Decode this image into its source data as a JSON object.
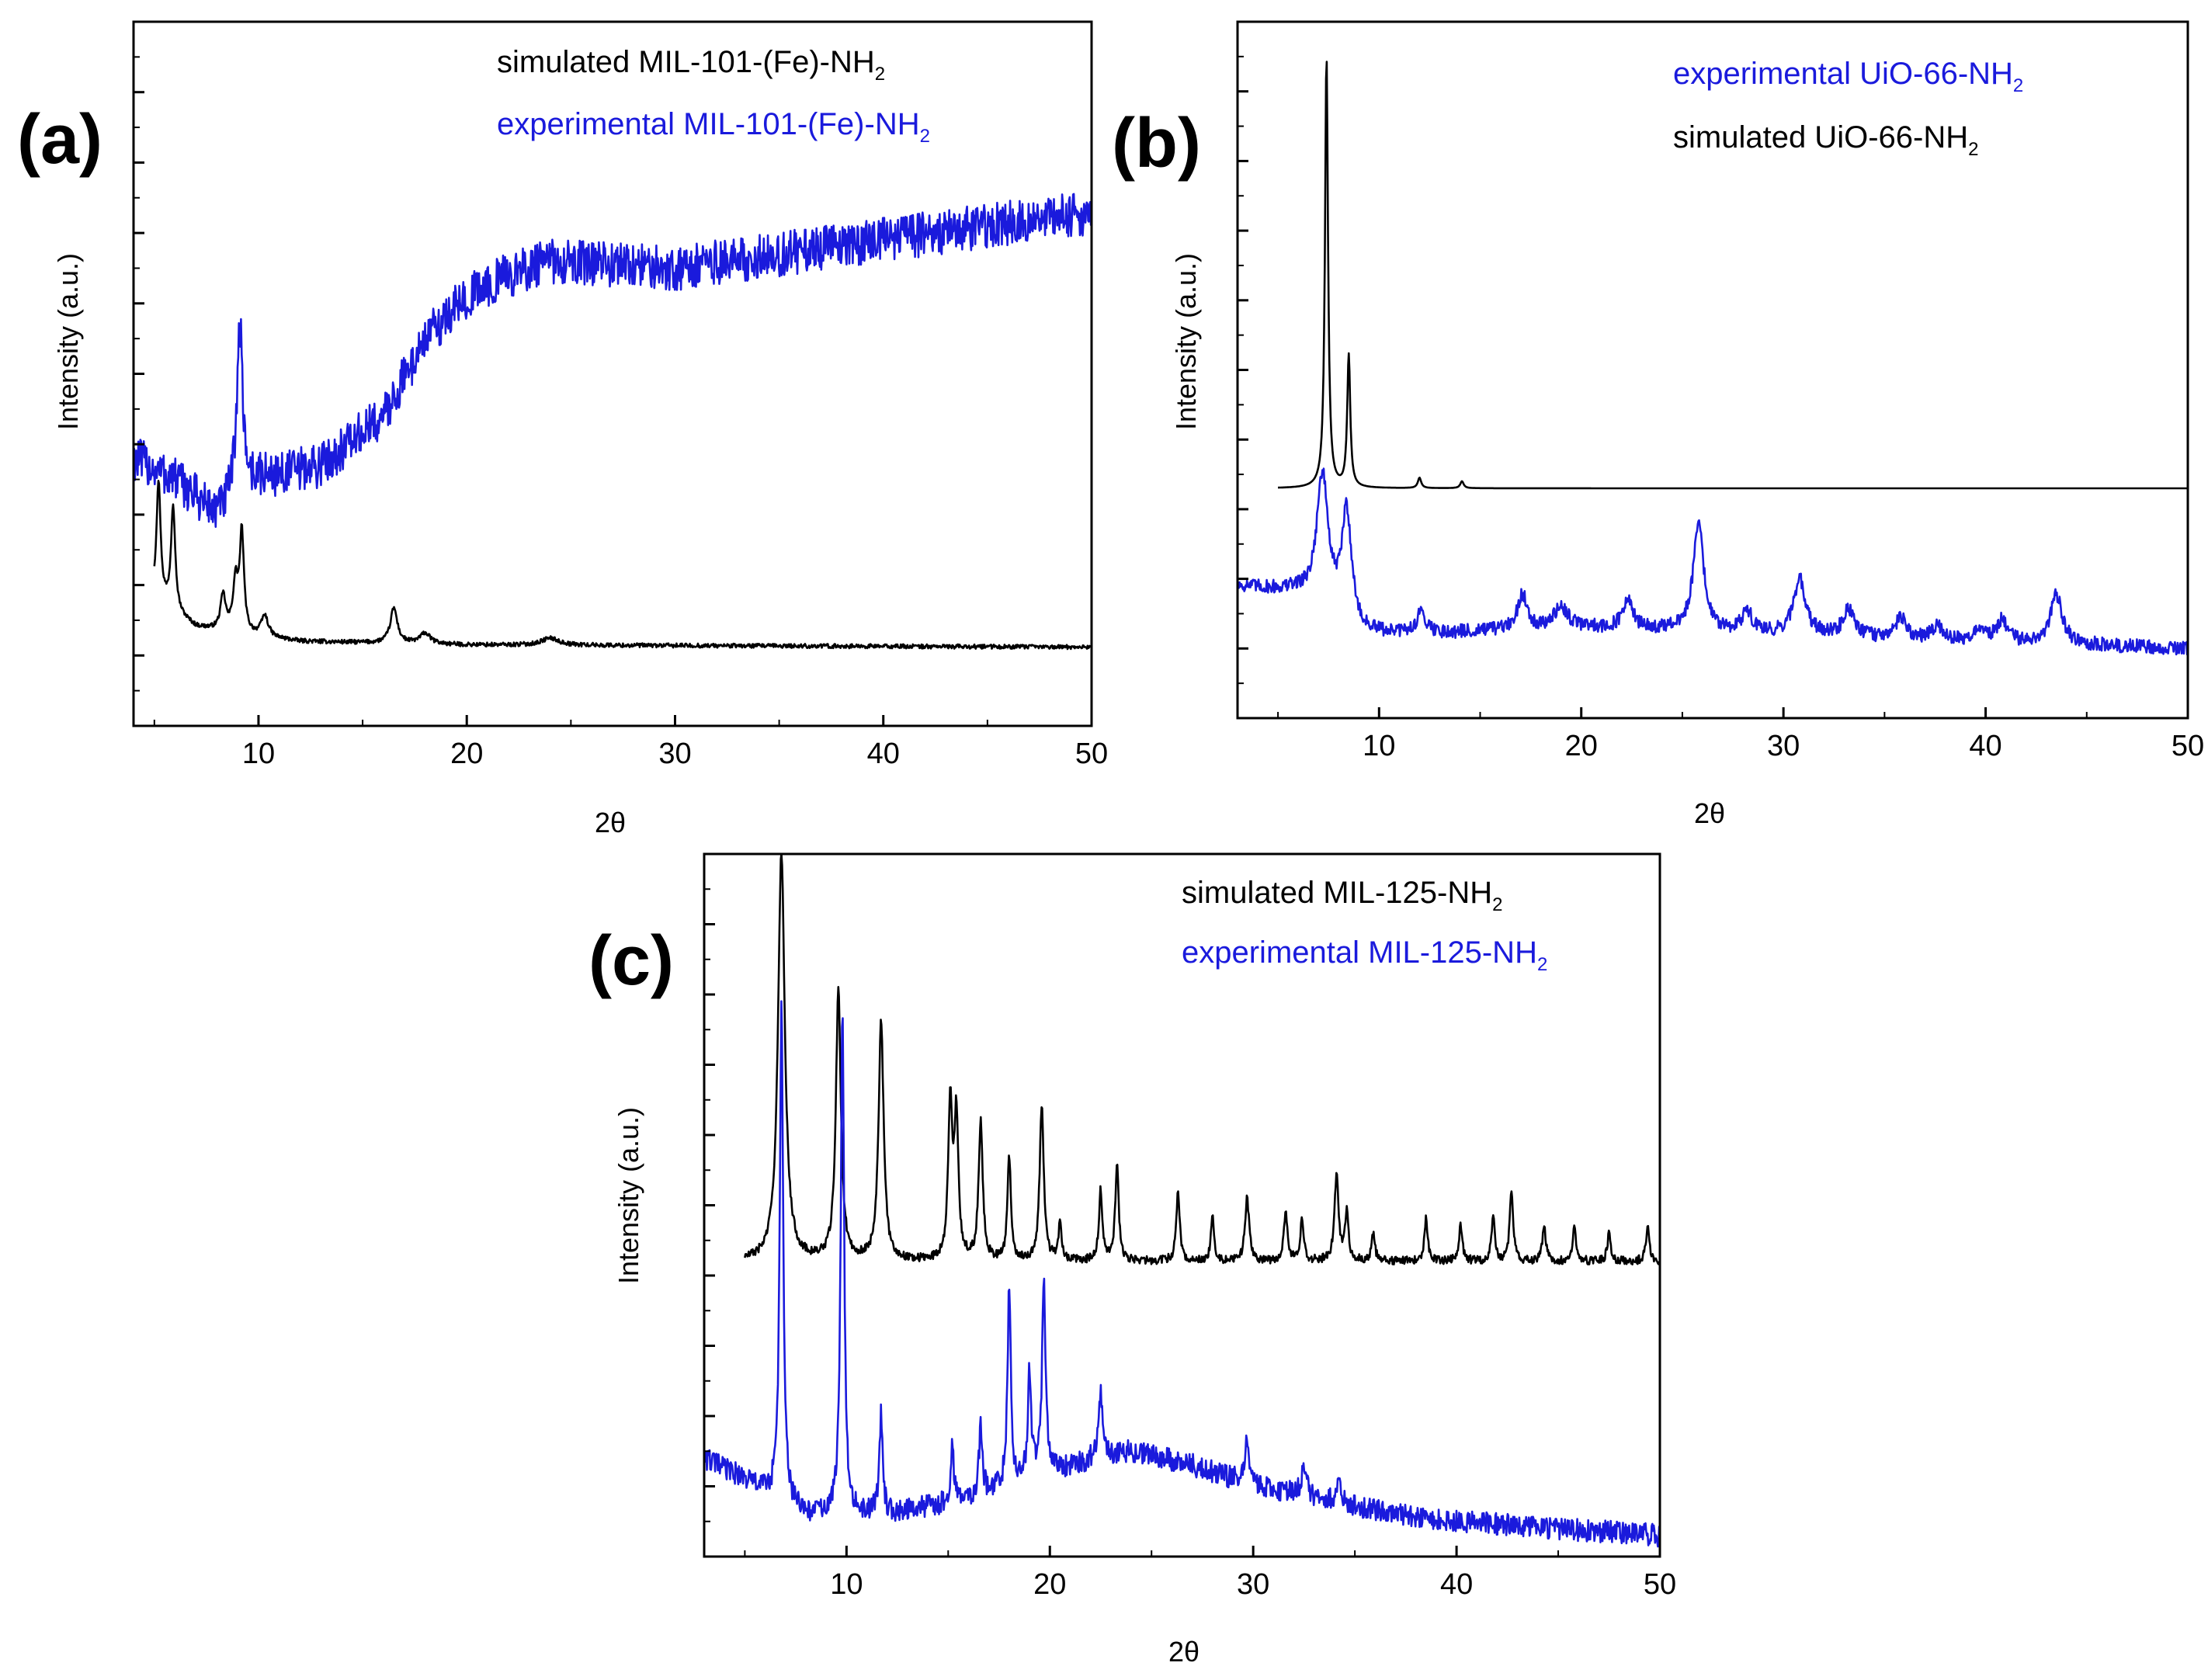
{
  "figure": {
    "colors": {
      "simulated": "#000000",
      "experimental": "#1a1adc",
      "axis": "#000000"
    }
  },
  "chart_data": [
    {
      "panel_label": "(a)",
      "type": "line",
      "title": "",
      "xlabel": "2θ",
      "ylabel": "Intensity (a.u.)",
      "xlim": [
        4,
        50
      ],
      "ylim": [
        0,
        100
      ],
      "x_ticks": [
        10,
        20,
        30,
        40,
        50
      ],
      "legend": [
        {
          "name": "simulated MIL-101-(Fe)-NH",
          "sub": "2",
          "color": "#000000"
        },
        {
          "name": "experimental MIL-101-(Fe)-NH",
          "sub": "2",
          "color": "#1a1adc"
        }
      ],
      "series": [
        {
          "name": "simulated MIL-101-(Fe)-NH2",
          "color": "#000000",
          "x_range": [
            5,
            50
          ],
          "baseline": [
            [
              5,
              18
            ],
            [
              7,
              14
            ],
            [
              9,
              13
            ],
            [
              12,
              12
            ],
            [
              20,
              11.5
            ],
            [
              50,
              11.2
            ]
          ],
          "peaks": [
            [
              5.2,
              17,
              0.12
            ],
            [
              5.9,
              15,
              0.12
            ],
            [
              8.3,
              5,
              0.15
            ],
            [
              8.9,
              7,
              0.15
            ],
            [
              9.2,
              14,
              0.12
            ],
            [
              10.3,
              3,
              0.2
            ],
            [
              16.5,
              5,
              0.2
            ],
            [
              18,
              1.5,
              0.3
            ],
            [
              24,
              1,
              0.5
            ]
          ],
          "noise": 0.3
        },
        {
          "name": "experimental MIL-101-(Fe)-NH2",
          "color": "#1a1adc",
          "x_range": [
            4,
            50
          ],
          "baseline": [
            [
              4,
              38
            ],
            [
              6,
              35
            ],
            [
              8,
              30
            ],
            [
              10,
              35
            ],
            [
              13,
              37
            ],
            [
              16,
              44
            ],
            [
              18,
              55
            ],
            [
              20,
              61
            ],
            [
              22,
              64
            ],
            [
              24,
              66
            ],
            [
              30,
              65
            ],
            [
              40,
              69
            ],
            [
              50,
              73
            ]
          ],
          "peaks": [
            [
              9.1,
              24,
              0.18
            ]
          ],
          "noise": 3.2
        }
      ]
    },
    {
      "panel_label": "(b)",
      "type": "line",
      "title": "",
      "xlabel": "2θ",
      "ylabel": "Intensity (a.u.)",
      "xlim": [
        3,
        50
      ],
      "ylim": [
        0,
        100
      ],
      "x_ticks": [
        10,
        20,
        30,
        40,
        50
      ],
      "legend": [
        {
          "name": "experimental UiO-66-NH",
          "sub": "2",
          "color": "#1a1adc"
        },
        {
          "name": "simulated UiO-66-NH",
          "sub": "2",
          "color": "#000000"
        }
      ],
      "series": [
        {
          "name": "simulated UiO-66-NH2",
          "color": "#000000",
          "x_range": [
            5,
            50
          ],
          "baseline": [
            [
              5,
              33
            ],
            [
              50,
              33
            ]
          ],
          "peaks": [
            [
              7.4,
              62,
              0.09
            ],
            [
              8.5,
              19,
              0.09
            ],
            [
              12.0,
              1.5,
              0.1
            ],
            [
              14.1,
              1,
              0.1
            ]
          ],
          "noise": 0
        },
        {
          "name": "experimental UiO-66-NH2",
          "color": "#1a1adc",
          "x_range": [
            3,
            50
          ],
          "baseline": [
            [
              3,
              19
            ],
            [
              6,
              18
            ],
            [
              9,
              12
            ],
            [
              12,
              12
            ],
            [
              20,
              13
            ],
            [
              30,
              12
            ],
            [
              40,
              11
            ],
            [
              50,
              10
            ]
          ],
          "peaks": [
            [
              7.2,
              19,
              0.35
            ],
            [
              8.4,
              16,
              0.3
            ],
            [
              12.1,
              3,
              0.3
            ],
            [
              17.1,
              5,
              0.3
            ],
            [
              19.0,
              3,
              0.4
            ],
            [
              22.3,
              4,
              0.3
            ],
            [
              25.8,
              16,
              0.3
            ],
            [
              28.2,
              3,
              0.3
            ],
            [
              30.8,
              8,
              0.35
            ],
            [
              33.2,
              4,
              0.3
            ],
            [
              35.8,
              3,
              0.3
            ],
            [
              37.6,
              2,
              0.3
            ],
            [
              39.7,
              2,
              0.3
            ],
            [
              40.8,
              3,
              0.3
            ],
            [
              43.5,
              7,
              0.35
            ]
          ],
          "noise": 1.0
        }
      ]
    },
    {
      "panel_label": "(c)",
      "type": "line",
      "title": "",
      "xlabel": "2θ",
      "ylabel": "Intensity (a.u.)",
      "xlim": [
        3,
        50
      ],
      "ylim": [
        0,
        100
      ],
      "x_ticks": [
        10,
        20,
        30,
        40,
        50
      ],
      "legend": [
        {
          "name": "simulated MIL-125-NH",
          "sub": "2",
          "color": "#000000"
        },
        {
          "name": "experimental MIL-125-NH",
          "sub": "2",
          "color": "#1a1adc"
        }
      ],
      "series": [
        {
          "name": "simulated MIL-125-NH2",
          "color": "#000000",
          "x_range": [
            5,
            50
          ],
          "baseline": [
            [
              5,
              42
            ],
            [
              50,
              42
            ]
          ],
          "peaks": [
            [
              6.8,
              58,
              0.2
            ],
            [
              9.6,
              38,
              0.15
            ],
            [
              11.7,
              34,
              0.15
            ],
            [
              15.1,
              22,
              0.12
            ],
            [
              15.4,
              20,
              0.12
            ],
            [
              16.6,
              20,
              0.12
            ],
            [
              18.0,
              15,
              0.1
            ],
            [
              19.6,
              22,
              0.12
            ],
            [
              20.5,
              5,
              0.1
            ],
            [
              22.5,
              10,
              0.1
            ],
            [
              23.3,
              14,
              0.1
            ],
            [
              26.3,
              10,
              0.1
            ],
            [
              28.0,
              6,
              0.1
            ],
            [
              29.7,
              9,
              0.12
            ],
            [
              31.6,
              7,
              0.1
            ],
            [
              32.4,
              6,
              0.1
            ],
            [
              34.1,
              12,
              0.12
            ],
            [
              34.6,
              7,
              0.1
            ],
            [
              35.9,
              4,
              0.1
            ],
            [
              38.5,
              6,
              0.1
            ],
            [
              40.2,
              5,
              0.1
            ],
            [
              41.8,
              6,
              0.1
            ],
            [
              42.7,
              10,
              0.1
            ],
            [
              44.3,
              5,
              0.1
            ],
            [
              45.8,
              5,
              0.1
            ],
            [
              47.5,
              4,
              0.1
            ],
            [
              49.4,
              5,
              0.1
            ]
          ],
          "noise": 0.6
        },
        {
          "name": "experimental MIL-125-NH2",
          "color": "#1a1adc",
          "x_range": [
            3,
            50
          ],
          "baseline": [
            [
              3,
              14
            ],
            [
              5,
              11
            ],
            [
              8,
              6
            ],
            [
              12,
              6
            ],
            [
              16,
              8
            ],
            [
              20,
              12
            ],
            [
              24,
              15
            ],
            [
              27,
              13
            ],
            [
              30,
              10
            ],
            [
              35,
              7
            ],
            [
              40,
              5
            ],
            [
              45,
              4
            ],
            [
              50,
              3
            ]
          ],
          "peaks": [
            [
              6.8,
              70,
              0.1
            ],
            [
              9.8,
              72,
              0.1
            ],
            [
              11.7,
              14,
              0.1
            ],
            [
              15.2,
              8,
              0.1
            ],
            [
              16.6,
              10,
              0.1
            ],
            [
              18.0,
              28,
              0.1
            ],
            [
              19.0,
              15,
              0.1
            ],
            [
              19.7,
              28,
              0.1
            ],
            [
              22.5,
              9,
              0.15
            ],
            [
              29.7,
              6,
              0.15
            ],
            [
              32.5,
              5,
              0.15
            ],
            [
              34.2,
              4,
              0.15
            ]
          ],
          "noise": 1.6
        }
      ]
    }
  ]
}
